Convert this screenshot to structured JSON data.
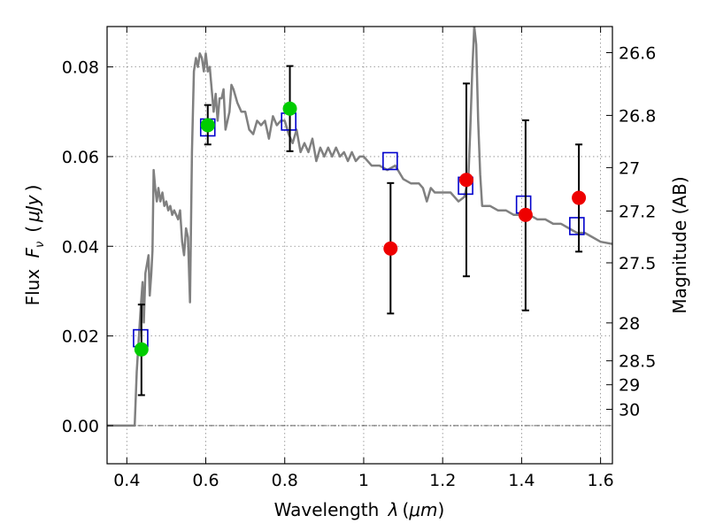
{
  "chart_data": {
    "type": "scatter",
    "xlabel": "Wavelength",
    "xlabel_symbol": "λ",
    "xlabel_unit_open": "(",
    "xlabel_unit": "μm",
    "xlabel_unit_close": ")",
    "ylabel": "Flux",
    "ylabel_symbol": "F",
    "ylabel_symbol_sub": "ν",
    "ylabel_unit_open": "(",
    "ylabel_unit": "μJy",
    "ylabel_unit_close": ")",
    "y2label": "Magnitude (AB)",
    "xlim": [
      0.35,
      1.63
    ],
    "ylim": [
      -0.0085,
      0.089
    ],
    "xticks": [
      0.4,
      0.6,
      0.8,
      1.0,
      1.2,
      1.4,
      1.6
    ],
    "xtick_labels": [
      "0.4",
      "0.6",
      "0.8",
      "1",
      "1.2",
      "1.4",
      "1.6"
    ],
    "yticks": [
      0.0,
      0.02,
      0.04,
      0.06,
      0.08
    ],
    "ytick_labels": [
      "0.00",
      "0.02",
      "0.04",
      "0.06",
      "0.08"
    ],
    "mag_ticks": [
      26.6,
      26.8,
      27,
      27.2,
      27.5,
      28,
      28.5,
      29,
      30
    ],
    "mag_tick_labels": [
      "26.6",
      "26.8",
      "27",
      "27.2",
      "27.5",
      "28",
      "28.5",
      "29",
      "30"
    ],
    "grid": true,
    "colors": {
      "model": "#808080",
      "box": "#0000cc",
      "green": "#00cc00",
      "red": "#ee0000",
      "errorbar": "#000000"
    },
    "model_spectrum": {
      "x": [
        0.35,
        0.42,
        0.425,
        0.43,
        0.435,
        0.44,
        0.443,
        0.447,
        0.451,
        0.455,
        0.458,
        0.462,
        0.465,
        0.468,
        0.472,
        0.476,
        0.48,
        0.485,
        0.49,
        0.495,
        0.5,
        0.505,
        0.51,
        0.515,
        0.52,
        0.525,
        0.53,
        0.535,
        0.54,
        0.545,
        0.55,
        0.555,
        0.56,
        0.565,
        0.57,
        0.575,
        0.58,
        0.585,
        0.59,
        0.595,
        0.6,
        0.605,
        0.61,
        0.615,
        0.62,
        0.625,
        0.63,
        0.635,
        0.64,
        0.645,
        0.65,
        0.655,
        0.66,
        0.665,
        0.67,
        0.68,
        0.69,
        0.7,
        0.71,
        0.72,
        0.73,
        0.74,
        0.75,
        0.76,
        0.77,
        0.78,
        0.79,
        0.8,
        0.81,
        0.82,
        0.83,
        0.84,
        0.85,
        0.86,
        0.87,
        0.88,
        0.89,
        0.9,
        0.91,
        0.92,
        0.93,
        0.94,
        0.95,
        0.96,
        0.97,
        0.98,
        0.99,
        1.0,
        1.02,
        1.04,
        1.06,
        1.08,
        1.1,
        1.12,
        1.14,
        1.15,
        1.16,
        1.17,
        1.18,
        1.2,
        1.22,
        1.24,
        1.255,
        1.265,
        1.27,
        1.275,
        1.28,
        1.285,
        1.29,
        1.295,
        1.3,
        1.31,
        1.32,
        1.34,
        1.36,
        1.38,
        1.4,
        1.42,
        1.44,
        1.46,
        1.48,
        1.5,
        1.52,
        1.54,
        1.56,
        1.58,
        1.6,
        1.63
      ],
      "y": [
        0.0,
        0.0,
        0.012,
        0.019,
        0.026,
        0.032,
        0.023,
        0.034,
        0.036,
        0.038,
        0.029,
        0.034,
        0.039,
        0.057,
        0.053,
        0.05,
        0.053,
        0.05,
        0.052,
        0.049,
        0.05,
        0.048,
        0.049,
        0.047,
        0.048,
        0.047,
        0.046,
        0.048,
        0.041,
        0.038,
        0.044,
        0.042,
        0.0275,
        0.061,
        0.079,
        0.082,
        0.08,
        0.083,
        0.082,
        0.079,
        0.083,
        0.079,
        0.08,
        0.075,
        0.07,
        0.074,
        0.068,
        0.073,
        0.073,
        0.075,
        0.066,
        0.068,
        0.07,
        0.076,
        0.075,
        0.072,
        0.07,
        0.07,
        0.066,
        0.065,
        0.068,
        0.067,
        0.068,
        0.064,
        0.069,
        0.067,
        0.068,
        0.068,
        0.065,
        0.063,
        0.066,
        0.061,
        0.063,
        0.061,
        0.064,
        0.059,
        0.062,
        0.06,
        0.062,
        0.06,
        0.062,
        0.06,
        0.061,
        0.059,
        0.061,
        0.059,
        0.06,
        0.06,
        0.058,
        0.058,
        0.057,
        0.058,
        0.055,
        0.054,
        0.054,
        0.053,
        0.05,
        0.053,
        0.052,
        0.052,
        0.052,
        0.05,
        0.051,
        0.055,
        0.066,
        0.079,
        0.089,
        0.085,
        0.068,
        0.056,
        0.049,
        0.049,
        0.049,
        0.048,
        0.048,
        0.047,
        0.047,
        0.047,
        0.046,
        0.046,
        0.045,
        0.045,
        0.044,
        0.043,
        0.043,
        0.042,
        0.041,
        0.0405
      ]
    },
    "model_boxes": {
      "x": [
        0.435,
        0.605,
        0.81,
        1.067,
        1.258,
        1.405,
        1.54
      ],
      "y": [
        0.0195,
        0.0665,
        0.0678,
        0.059,
        0.0535,
        0.0493,
        0.0445
      ]
    },
    "errorbars": {
      "x": [
        0.437,
        0.605,
        0.813,
        1.068,
        1.26,
        1.41,
        1.545
      ],
      "y": [
        0.017,
        0.067,
        0.0707,
        0.0395,
        0.0548,
        0.047,
        0.0508
      ],
      "lower": [
        0.0068,
        0.0627,
        0.0612,
        0.025,
        0.0333,
        0.0257,
        0.0388
      ],
      "upper": [
        0.027,
        0.0715,
        0.0802,
        0.0541,
        0.0763,
        0.0681,
        0.0627
      ]
    },
    "green_points": {
      "x": [
        0.437,
        0.605,
        0.813
      ],
      "y": [
        0.017,
        0.067,
        0.0707
      ]
    },
    "red_points": {
      "x": [
        1.068,
        1.26,
        1.41,
        1.545
      ],
      "y": [
        0.0395,
        0.0548,
        0.047,
        0.0508
      ]
    }
  }
}
